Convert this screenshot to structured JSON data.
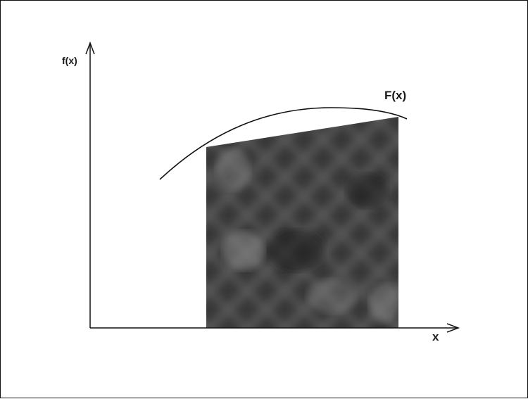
{
  "diagram": {
    "y_axis_label": "f(x)",
    "x_axis_label": "x",
    "curve_label": "F(x)",
    "colors": {
      "line": "#111111",
      "shade_base": "#4a4a4a",
      "shade_light": "#8a8a8a",
      "shade_dark": "#202020"
    }
  }
}
